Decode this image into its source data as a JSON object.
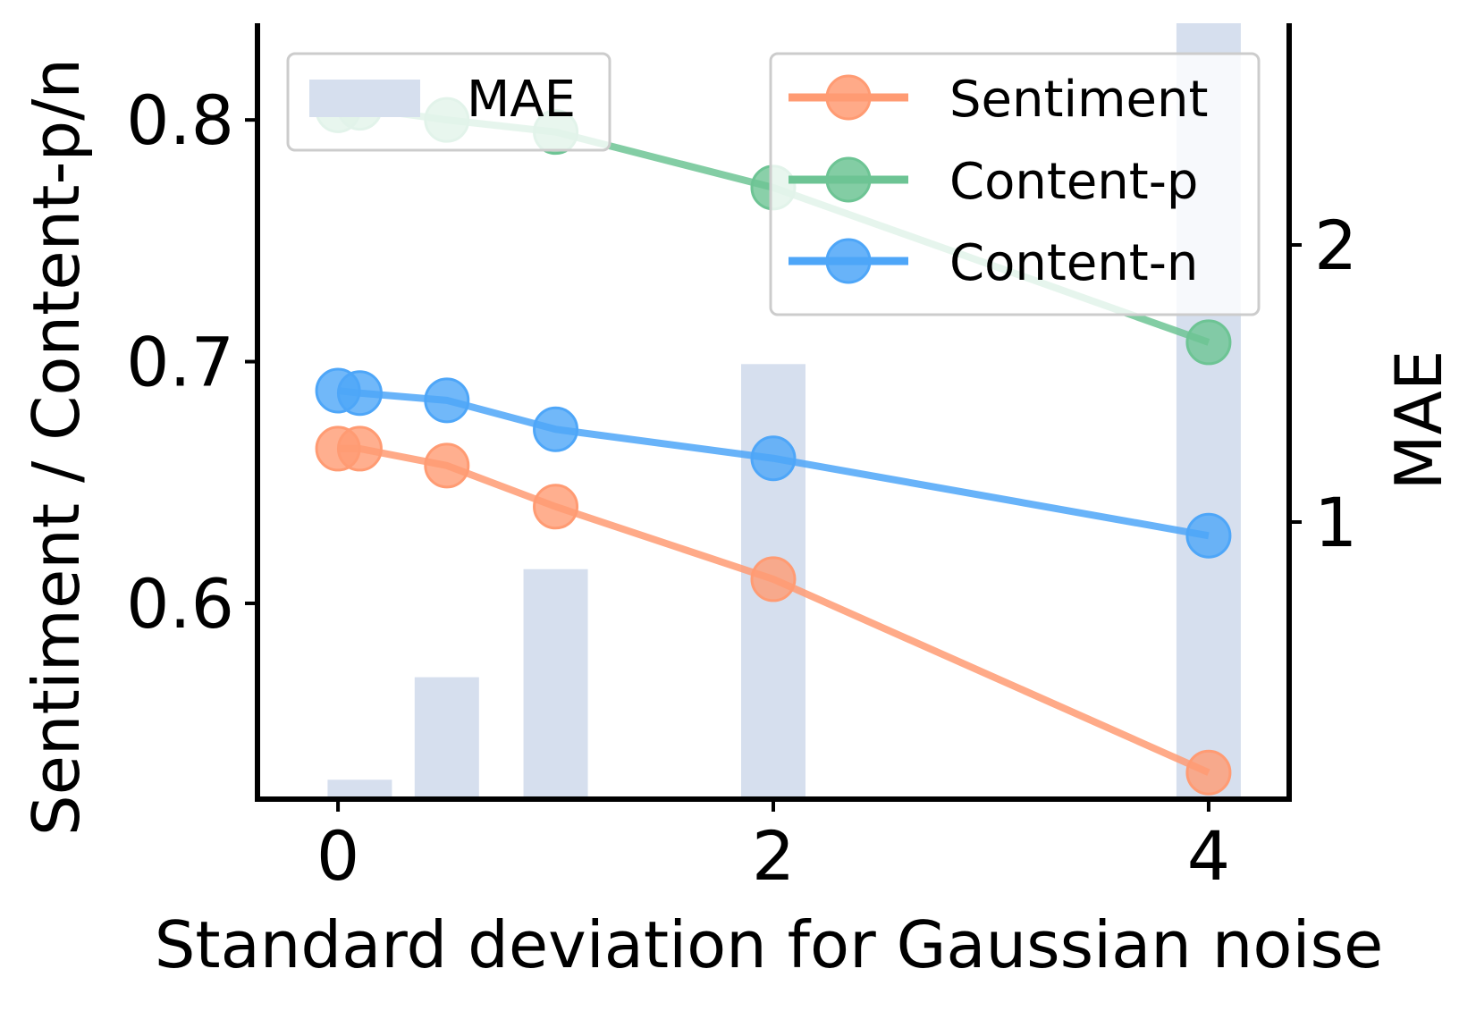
{
  "chart_data": {
    "type": "bar+line",
    "x_axis": {
      "label": "Standard deviation for Gaussian noise",
      "ticks": [
        0,
        2,
        4
      ],
      "range": [
        -0.37,
        4.37
      ]
    },
    "y_left": {
      "label": "Sentiment / Content-p/n",
      "ticks": [
        0.6,
        0.7,
        0.8
      ],
      "range": [
        0.519,
        0.84
      ]
    },
    "y_right": {
      "label": "MAE",
      "ticks": [
        1,
        2
      ],
      "range": [
        0,
        2.8
      ]
    },
    "bars": {
      "name": "MAE",
      "color": "#d6dfee",
      "x": [
        0.1,
        0.5,
        1,
        2,
        4
      ],
      "values": [
        0.07,
        0.44,
        0.83,
        1.57,
        2.85
      ]
    },
    "series": [
      {
        "name": "Sentiment",
        "color": "#ff9b73",
        "x": [
          0,
          0.1,
          0.5,
          1,
          2,
          4
        ],
        "values": [
          0.664,
          0.664,
          0.657,
          0.64,
          0.61,
          0.53
        ]
      },
      {
        "name": "Content-p",
        "color": "#6dc494",
        "x": [
          0,
          0.1,
          0.5,
          1,
          2,
          4
        ],
        "values": [
          0.804,
          0.805,
          0.8,
          0.795,
          0.772,
          0.708
        ]
      },
      {
        "name": "Content-n",
        "color": "#4ea6f8",
        "x": [
          0,
          0.1,
          0.5,
          1,
          2,
          4
        ],
        "values": [
          0.688,
          0.687,
          0.684,
          0.672,
          0.66,
          0.628
        ]
      }
    ],
    "legends": {
      "left": {
        "position": "top-left",
        "entries": [
          "MAE"
        ]
      },
      "right": {
        "position": "top-right",
        "entries": [
          "Sentiment",
          "Content-p",
          "Content-n"
        ]
      }
    },
    "grid": false
  }
}
